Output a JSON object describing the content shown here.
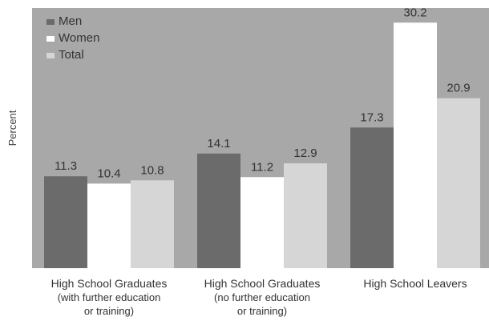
{
  "chart_data": {
    "type": "bar",
    "categories": [
      [
        "High School Graduates",
        "(with further education",
        "or training)"
      ],
      [
        "High School Graduates",
        "(no further education",
        "or training)"
      ],
      [
        "High School Leavers"
      ]
    ],
    "series": [
      {
        "name": "Men",
        "values": [
          11.3,
          14.1,
          17.3
        ],
        "color": "#6b6b6b"
      },
      {
        "name": "Women",
        "values": [
          10.4,
          11.2,
          30.2
        ],
        "color": "#ffffff"
      },
      {
        "name": "Total",
        "values": [
          10.8,
          12.9,
          20.9
        ],
        "color": "#d6d6d6"
      }
    ],
    "ylabel": "Percent",
    "ylim": [
      0,
      32
    ],
    "legend_position": "top-left",
    "grid": false,
    "plot_background": "#a8a8a8"
  }
}
